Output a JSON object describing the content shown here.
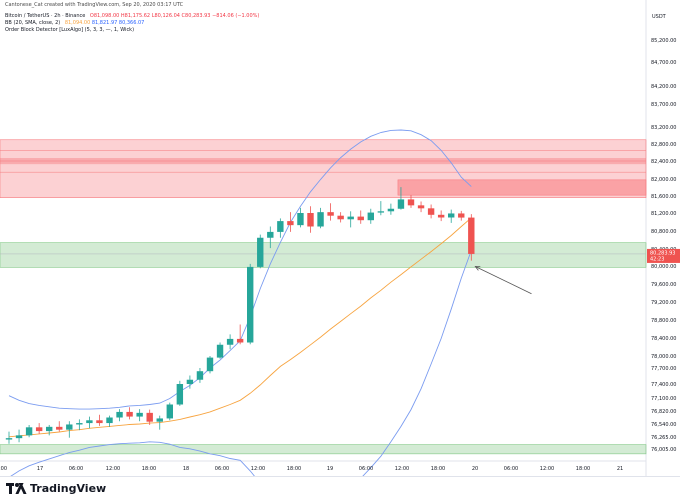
{
  "credit": "Cantonese_Cat created with TradingView.com, Sep 20, 2020 03:17 UTC",
  "symbol_line": {
    "label": "Bitcoin / TetherUS · 2h · Binance",
    "o": "O81,098.00",
    "h": "H81,175.62",
    "l": "L80,126.04",
    "c": "C80,283.93",
    "chg": "−814.06 (−1.00%)"
  },
  "bb_line": {
    "label": "BB (20, SMA, close, 2)",
    "basis": "81,094.00",
    "upper": "81,821.97",
    "lower": "80,366.07"
  },
  "obd_line": {
    "label": "Order Block Detector [LuxAlgo] (5, 3, 3, —, 1, Wick)"
  },
  "brand": "TradingView",
  "colors": {
    "up": "#26a69a",
    "down": "#ef5350",
    "bb_basis": "#f7a440",
    "bb_band": "#7b9cf0",
    "bear_ob": "#f77c80",
    "bull_ob": "#81c784"
  },
  "chart_data": {
    "type": "candlestick",
    "currency": "USDT",
    "y_ticks": [
      "85,200.00",
      "84,700.00",
      "84,200.00",
      "83,700.00",
      "83,200.00",
      "82,800.00",
      "82,400.00",
      "82,000.00",
      "81,600.00",
      "81,200.00",
      "80,800.00",
      "80,400.00",
      "80,000.00",
      "79,600.00",
      "79,200.00",
      "78,800.00",
      "78,400.00",
      "78,000.00",
      "77,700.00",
      "77,400.00",
      "77,100.00",
      "76,820.00",
      "76,540.00",
      "76,265.00",
      "76,005.00"
    ],
    "y_tick_values": [
      85200,
      84700,
      84200,
      83700,
      83200,
      82800,
      82400,
      82000,
      81600,
      81200,
      80800,
      80400,
      80000,
      79600,
      79200,
      78800,
      78400,
      78000,
      77700,
      77400,
      77100,
      76820,
      76540,
      76265,
      76005
    ],
    "x_ticks": [
      ":00",
      "17",
      "06:00",
      "12:00",
      "18:00",
      "18",
      "06:00",
      "12:00",
      "18:00",
      "19",
      "06:00",
      "12:00",
      "18:00",
      "20",
      "06:00",
      "12:00",
      "18:00",
      "21"
    ],
    "last_price": "80,283.93",
    "countdown": "42:23",
    "candles": [
      [
        76210,
        76380,
        76120,
        76240
      ],
      [
        76240,
        76420,
        76150,
        76300
      ],
      [
        76300,
        76520,
        76260,
        76470
      ],
      [
        76470,
        76560,
        76330,
        76390
      ],
      [
        76390,
        76520,
        76300,
        76480
      ],
      [
        76480,
        76600,
        76380,
        76420
      ],
      [
        76420,
        76600,
        76250,
        76530
      ],
      [
        76530,
        76640,
        76410,
        76560
      ],
      [
        76560,
        76700,
        76450,
        76620
      ],
      [
        76620,
        76740,
        76500,
        76560
      ],
      [
        76560,
        76720,
        76480,
        76680
      ],
      [
        76680,
        76860,
        76600,
        76800
      ],
      [
        76800,
        76900,
        76640,
        76700
      ],
      [
        76700,
        76860,
        76600,
        76780
      ],
      [
        76780,
        76850,
        76520,
        76590
      ],
      [
        76590,
        76720,
        76420,
        76660
      ],
      [
        76660,
        77000,
        76620,
        76960
      ],
      [
        76960,
        77460,
        76930,
        77400
      ],
      [
        77400,
        77560,
        77300,
        77480
      ],
      [
        77480,
        77700,
        77420,
        77640
      ],
      [
        77640,
        78000,
        77600,
        77960
      ],
      [
        77960,
        78300,
        77930,
        78250
      ],
      [
        78250,
        78480,
        78150,
        78380
      ],
      [
        78380,
        78700,
        78260,
        78300
      ],
      [
        78300,
        80050,
        78260,
        79980
      ],
      [
        79980,
        80720,
        79950,
        80650
      ],
      [
        80650,
        80900,
        80420,
        80780
      ],
      [
        80780,
        81080,
        80650,
        81020
      ],
      [
        81020,
        81220,
        80780,
        80930
      ],
      [
        80930,
        81320,
        80880,
        81200
      ],
      [
        81200,
        81360,
        80760,
        80900
      ],
      [
        80900,
        81320,
        80860,
        81220
      ],
      [
        81220,
        81430,
        81030,
        81140
      ],
      [
        81140,
        81220,
        80990,
        81060
      ],
      [
        81060,
        81240,
        80880,
        81120
      ],
      [
        81120,
        81260,
        80960,
        81040
      ],
      [
        81040,
        81300,
        80960,
        81210
      ],
      [
        81210,
        81480,
        81150,
        81240
      ],
      [
        81240,
        81420,
        81160,
        81300
      ],
      [
        81300,
        81810,
        81280,
        81520
      ],
      [
        81520,
        81620,
        81320,
        81380
      ],
      [
        81380,
        81470,
        81220,
        81310
      ],
      [
        81310,
        81400,
        81080,
        81160
      ],
      [
        81160,
        81260,
        81020,
        81100
      ],
      [
        81100,
        81280,
        80980,
        81190
      ],
      [
        81190,
        81250,
        81030,
        81098
      ],
      [
        81098,
        81175,
        80126,
        80284
      ]
    ],
    "bb_basis": [
      76270,
      76290,
      76310,
      76330,
      76350,
      76370,
      76400,
      76420,
      76450,
      76470,
      76490,
      76510,
      76530,
      76540,
      76560,
      76570,
      76600,
      76640,
      76690,
      76740,
      76800,
      76880,
      76960,
      77050,
      77200,
      77380,
      77560,
      77740,
      77910,
      78080,
      78250,
      78420,
      78600,
      78770,
      78940,
      79110,
      79290,
      79460,
      79640,
      79810,
      79980,
      80160,
      80340,
      80520,
      80700,
      80900,
      81094
    ],
    "bb_upper": [
      77150,
      77050,
      76980,
      76940,
      76910,
      76880,
      76870,
      76860,
      76860,
      76870,
      76880,
      76900,
      76930,
      76940,
      76960,
      76990,
      77090,
      77240,
      77370,
      77520,
      77700,
      77900,
      78120,
      78340,
      78870,
      79500,
      80050,
      80550,
      80990,
      81360,
      81700,
      81990,
      82250,
      82480,
      82680,
      82850,
      82980,
      83070,
      83120,
      83130,
      83110,
      83020,
      82880,
      82650,
      82360,
      82040,
      81822
    ],
    "bb_lower": [
      75390,
      75530,
      75640,
      75720,
      75790,
      75860,
      75930,
      75980,
      76040,
      76070,
      76100,
      76120,
      76130,
      76140,
      76160,
      76150,
      76110,
      76040,
      76010,
      75960,
      75900,
      75860,
      75800,
      75760,
      75530,
      75260,
      75070,
      74930,
      74830,
      74800,
      74800,
      74850,
      74950,
      75060,
      75200,
      75370,
      75600,
      75850,
      76160,
      76490,
      76850,
      77300,
      77800,
      78390,
      79040,
      79730,
      80366
    ],
    "order_blocks": [
      {
        "kind": "bearish",
        "top": 82900,
        "bottom": 81560
      },
      {
        "kind": "bearish",
        "top": 81980,
        "bottom": 81620
      },
      {
        "kind": "bullish",
        "top": 80540,
        "bottom": 79970
      },
      {
        "kind": "bullish",
        "top": 76100,
        "bottom": 75900
      }
    ],
    "annotation": {
      "type": "arrow",
      "from": [
        50,
        79450
      ],
      "to": [
        46,
        80130
      ]
    }
  }
}
